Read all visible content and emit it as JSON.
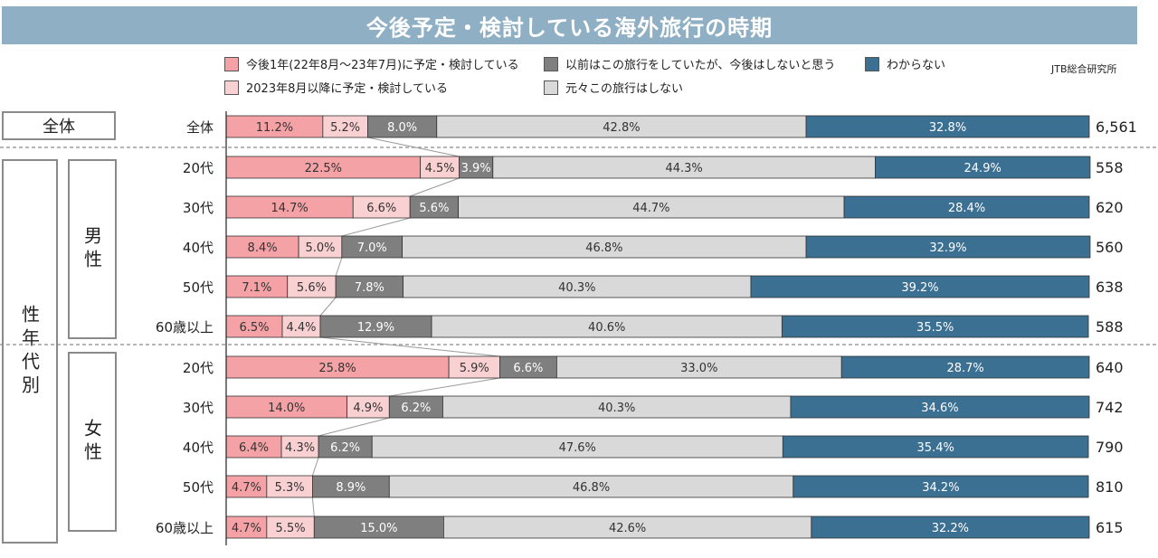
{
  "title": "今後予定・検討している海外旅行の時期",
  "source": "JTB総合研究所",
  "colors": {
    "pink": "#f4a2a6",
    "light_pink": "#fad1d2",
    "dark_gray": "#7f7f7f",
    "light_gray": "#d9d9d9",
    "blue": "#3b7093",
    "title_bg": "#8fafc4"
  },
  "legend": [
    {
      "label": "今後1年(22年8月～23年7月)に予定・検討している",
      "color": "#f4a2a6"
    },
    {
      "label": "以前はこの旅行をしていたが、今後はしないと思う",
      "color": "#7f7f7f"
    },
    {
      "label": "わからない",
      "color": "#3b7093"
    },
    {
      "label": "2023年8月以降に予定・検討している",
      "color": "#fad1d2"
    },
    {
      "label": "元々この旅行はしない",
      "color": "#d9d9d9"
    }
  ],
  "groups": {
    "all": "全体",
    "by_gender_age": "性年代別",
    "male": "男性",
    "female": "女性"
  },
  "chart_data": {
    "type": "bar",
    "stacked": "100%",
    "orientation": "horizontal",
    "title": "今後予定・検討している海外旅行の時期",
    "categories": [
      "全体",
      "20代",
      "30代",
      "40代",
      "50代",
      "60歳以上",
      "20代",
      "30代",
      "40代",
      "50代",
      "60歳以上"
    ],
    "category_groups": [
      "全体",
      "男性",
      "男性",
      "男性",
      "男性",
      "男性",
      "女性",
      "女性",
      "女性",
      "女性",
      "女性"
    ],
    "series": [
      {
        "name": "今後1年(22年8月～23年7月)に予定・検討している",
        "values": [
          11.2,
          22.5,
          14.7,
          8.4,
          7.1,
          6.5,
          25.8,
          14.0,
          6.4,
          4.7,
          4.7
        ]
      },
      {
        "name": "2023年8月以降に予定・検討している",
        "values": [
          5.2,
          4.5,
          6.6,
          5.0,
          5.6,
          4.4,
          5.9,
          4.9,
          4.3,
          5.3,
          5.5
        ]
      },
      {
        "name": "以前はこの旅行をしていたが、今後はしないと思う",
        "values": [
          8.0,
          3.9,
          5.6,
          7.0,
          7.8,
          12.9,
          6.6,
          6.2,
          6.2,
          8.9,
          15.0
        ]
      },
      {
        "name": "元々この旅行はしない",
        "values": [
          42.8,
          44.3,
          44.7,
          46.8,
          40.3,
          40.6,
          33.0,
          40.3,
          47.6,
          46.8,
          42.6
        ]
      },
      {
        "name": "わからない",
        "values": [
          32.8,
          24.9,
          28.4,
          32.9,
          39.2,
          35.5,
          28.7,
          34.6,
          35.4,
          34.2,
          32.2
        ]
      }
    ],
    "n_values": [
      "6,561",
      "558",
      "620",
      "560",
      "638",
      "588",
      "640",
      "742",
      "790",
      "810",
      "615"
    ],
    "unit": "%",
    "xlim": [
      0,
      100
    ],
    "grid": false,
    "legend_position": "top"
  }
}
